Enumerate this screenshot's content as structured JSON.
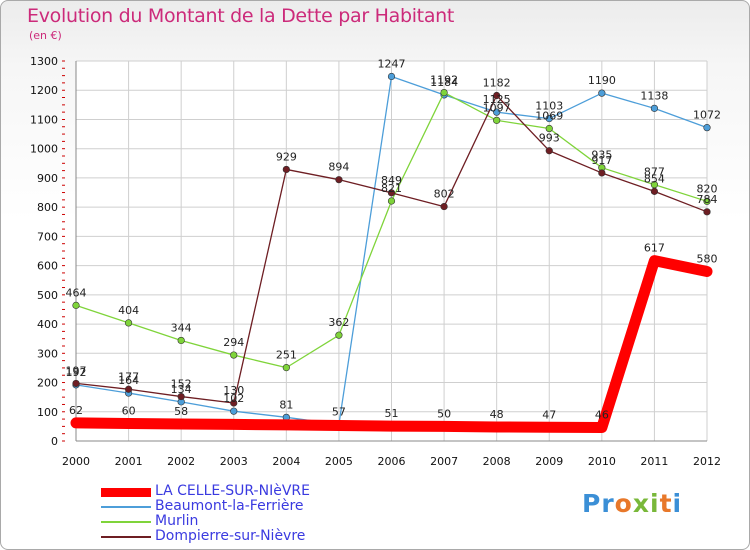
{
  "title": "Evolution du Montant de la Dette par Habitant",
  "unit": "(en €)",
  "brand": {
    "letters": [
      "P",
      "r",
      "o",
      "x",
      "i",
      "t",
      "i"
    ],
    "colors": [
      "#3b8fd6",
      "#3b8fd6",
      "#e8782a",
      "#79b83a",
      "#79b83a",
      "#e8782a",
      "#3b8fd6"
    ]
  },
  "chart_data": {
    "type": "line",
    "x": [
      "2000",
      "2001",
      "2002",
      "2003",
      "2004",
      "2005",
      "2006",
      "2007",
      "2008",
      "2009",
      "2010",
      "2011",
      "2012"
    ],
    "ylim": [
      0,
      1300
    ],
    "yticks": [
      0,
      100,
      200,
      300,
      400,
      500,
      600,
      700,
      800,
      900,
      1000,
      1100,
      1200,
      1300
    ],
    "grid": true,
    "legend_position": "bottom-left",
    "series": [
      {
        "name": "LA CELLE-SUR-NIèVRE",
        "color": "#ff0000",
        "values": [
          62,
          60,
          58,
          57,
          55,
          53,
          51,
          50,
          48,
          47,
          46,
          617,
          580
        ],
        "labels": [
          "62",
          "60",
          "58",
          "",
          "",
          "",
          "51",
          "50",
          "48",
          "47",
          "46",
          "617",
          "580"
        ]
      },
      {
        "name": "Beaumont-la-Ferrière",
        "color": "#4d9ed9",
        "values": [
          192,
          164,
          134,
          102,
          81,
          57,
          1247,
          1184,
          1125,
          1103,
          1190,
          1138,
          1072
        ],
        "labels": [
          "192",
          "164",
          "134",
          "102",
          "81",
          "57",
          "1247",
          "1184",
          "1125",
          "1103",
          "1190",
          "1138",
          "1072"
        ]
      },
      {
        "name": "Murlin",
        "color": "#7fd43a",
        "values": [
          464,
          404,
          344,
          294,
          251,
          362,
          821,
          1192,
          1097,
          1069,
          935,
          877,
          820
        ],
        "labels": [
          "464",
          "404",
          "344",
          "294",
          "251",
          "362",
          "821",
          "1192",
          "1097",
          "1069",
          "935",
          "877",
          "820"
        ]
      },
      {
        "name": "Dompierre-sur-Nièvre",
        "color": "#6e1e23",
        "values": [
          197,
          177,
          152,
          130,
          929,
          894,
          849,
          802,
          1182,
          993,
          917,
          854,
          784
        ],
        "labels": [
          "197",
          "177",
          "152",
          "130",
          "929",
          "894",
          "849",
          "802",
          "1182",
          "993",
          "917",
          "854",
          "784"
        ]
      }
    ]
  }
}
